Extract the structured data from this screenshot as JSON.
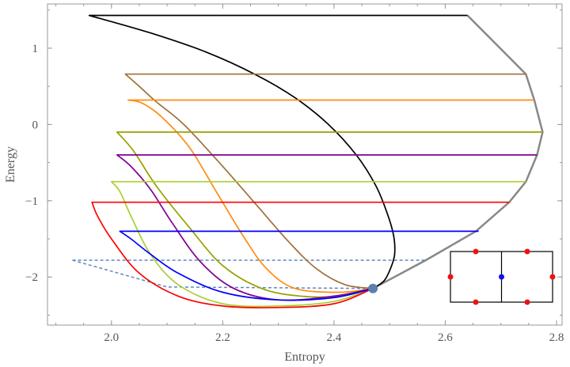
{
  "chart_data": {
    "type": "line",
    "title": "",
    "xlabel": "Entropy",
    "ylabel": "Energy",
    "xlim": [
      1.885,
      2.81
    ],
    "ylim": [
      -2.63,
      1.58
    ],
    "x_ticks": [
      {
        "v": 2.0,
        "label": "2.0"
      },
      {
        "v": 2.2,
        "label": "2.2"
      },
      {
        "v": 2.4,
        "label": "2.4"
      },
      {
        "v": 2.6,
        "label": "2.6"
      },
      {
        "v": 2.8,
        "label": "2.8"
      }
    ],
    "y_ticks": [
      {
        "v": 1,
        "label": "1"
      },
      {
        "v": 0,
        "label": "0"
      },
      {
        "v": -1,
        "label": "−1"
      },
      {
        "v": -2,
        "label": "−2"
      }
    ],
    "grid": false,
    "colors": {
      "axis": "#999999",
      "envelope": "#888888",
      "dashed": "#5b87c2",
      "point": "#5b7fb0"
    },
    "series": [
      {
        "color": "#000000",
        "points": [
          [
            2.47,
            -2.15
          ],
          [
            2.49,
            -2.05
          ],
          [
            2.502,
            -1.88
          ],
          [
            2.509,
            -1.7
          ],
          [
            2.507,
            -1.45
          ],
          [
            2.495,
            -1.15
          ],
          [
            2.475,
            -0.8
          ],
          [
            2.44,
            -0.4
          ],
          [
            2.39,
            0.0
          ],
          [
            2.33,
            0.35
          ],
          [
            2.26,
            0.65
          ],
          [
            2.17,
            0.95
          ],
          [
            2.07,
            1.2
          ],
          [
            1.96,
            1.43
          ],
          [
            2.64,
            1.43
          ]
        ]
      },
      {
        "color": "#a0703a",
        "points": [
          [
            2.47,
            -2.15
          ],
          [
            2.42,
            -2.1
          ],
          [
            2.37,
            -1.9
          ],
          [
            2.32,
            -1.55
          ],
          [
            2.26,
            -1.05
          ],
          [
            2.2,
            -0.55
          ],
          [
            2.13,
            0.0
          ],
          [
            2.08,
            0.3
          ],
          [
            2.05,
            0.5
          ],
          [
            2.025,
            0.66
          ],
          [
            2.745,
            0.66
          ]
        ]
      },
      {
        "color": "#ff8c10",
        "points": [
          [
            2.47,
            -2.15
          ],
          [
            2.41,
            -2.2
          ],
          [
            2.33,
            -2.15
          ],
          [
            2.28,
            -1.9
          ],
          [
            2.24,
            -1.5
          ],
          [
            2.19,
            -0.9
          ],
          [
            2.14,
            -0.3
          ],
          [
            2.09,
            0.1
          ],
          [
            2.055,
            0.28
          ],
          [
            2.03,
            0.32
          ],
          [
            2.76,
            0.32
          ]
        ]
      },
      {
        "color": "#99a000",
        "points": [
          [
            2.47,
            -2.15
          ],
          [
            2.41,
            -2.25
          ],
          [
            2.34,
            -2.25
          ],
          [
            2.27,
            -2.15
          ],
          [
            2.2,
            -1.85
          ],
          [
            2.14,
            -1.35
          ],
          [
            2.08,
            -0.8
          ],
          [
            2.04,
            -0.35
          ],
          [
            2.01,
            -0.1
          ],
          [
            2.775,
            -0.1
          ]
        ]
      },
      {
        "color": "#800090",
        "points": [
          [
            2.47,
            -2.15
          ],
          [
            2.4,
            -2.25
          ],
          [
            2.3,
            -2.3
          ],
          [
            2.22,
            -2.15
          ],
          [
            2.16,
            -1.8
          ],
          [
            2.11,
            -1.3
          ],
          [
            2.07,
            -0.85
          ],
          [
            2.035,
            -0.55
          ],
          [
            2.01,
            -0.4
          ],
          [
            2.765,
            -0.4
          ]
        ]
      },
      {
        "color": "#a8d030",
        "points": [
          [
            2.47,
            -2.15
          ],
          [
            2.4,
            -2.32
          ],
          [
            2.3,
            -2.38
          ],
          [
            2.2,
            -2.35
          ],
          [
            2.12,
            -2.1
          ],
          [
            2.07,
            -1.7
          ],
          [
            2.035,
            -1.2
          ],
          [
            2.015,
            -0.88
          ],
          [
            2.0,
            -0.75
          ],
          [
            2.745,
            -0.75
          ]
        ]
      },
      {
        "color": "#ff0000",
        "points": [
          [
            2.47,
            -2.15
          ],
          [
            2.4,
            -2.35
          ],
          [
            2.3,
            -2.4
          ],
          [
            2.2,
            -2.38
          ],
          [
            2.12,
            -2.25
          ],
          [
            2.05,
            -1.95
          ],
          [
            2.0,
            -1.5
          ],
          [
            1.975,
            -1.2
          ],
          [
            1.965,
            -1.02
          ],
          [
            2.715,
            -1.02
          ]
        ]
      },
      {
        "color": "#0000ff",
        "points": [
          [
            2.47,
            -2.15
          ],
          [
            2.4,
            -2.27
          ],
          [
            2.3,
            -2.3
          ],
          [
            2.2,
            -2.2
          ],
          [
            2.12,
            -1.95
          ],
          [
            2.07,
            -1.7
          ],
          [
            2.035,
            -1.5
          ],
          [
            2.015,
            -1.4
          ],
          [
            2.66,
            -1.4
          ]
        ]
      }
    ],
    "envelope": [
      [
        2.47,
        -2.15
      ],
      [
        2.565,
        -1.78
      ],
      [
        2.655,
        -1.4
      ],
      [
        2.715,
        -1.02
      ],
      [
        2.745,
        -0.75
      ],
      [
        2.765,
        -0.4
      ],
      [
        2.775,
        -0.1
      ],
      [
        2.76,
        0.32
      ],
      [
        2.745,
        0.66
      ],
      [
        2.64,
        1.43
      ]
    ],
    "dashed_series": [
      [
        [
          1.93,
          -1.78
        ],
        [
          2.565,
          -1.78
        ]
      ],
      [
        [
          1.93,
          -1.78
        ],
        [
          2.1,
          -2.13
        ],
        [
          2.47,
          -2.15
        ]
      ]
    ],
    "point": [
      2.47,
      -2.15
    ],
    "inset": {
      "description_nodes": {
        "red_count": 6,
        "blue_count": 1
      },
      "red_color": "#ee1111",
      "blue_color": "#1111ee"
    }
  }
}
